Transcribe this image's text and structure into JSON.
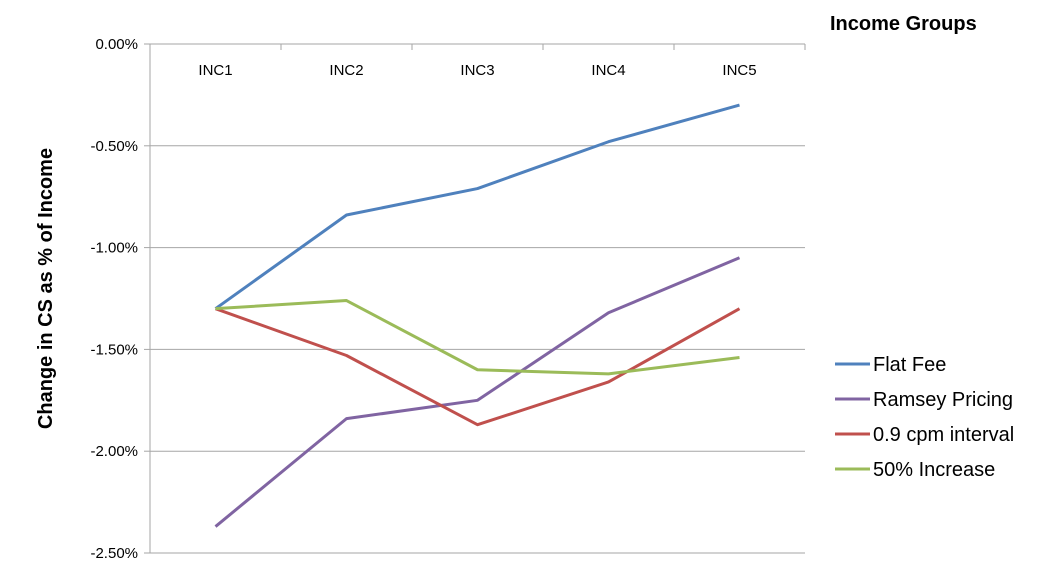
{
  "chart_data": {
    "type": "line",
    "title": "",
    "xlabel": "Income Groups",
    "ylabel": "Change in CS as % of Income",
    "categories": [
      "INC1",
      "INC2",
      "INC3",
      "INC4",
      "INC5"
    ],
    "ylim": [
      -2.5,
      0
    ],
    "yticks": [
      0,
      -0.5,
      -1,
      -1.5,
      -2,
      -2.5
    ],
    "ytick_labels": [
      "0.00%",
      "-0.50%",
      "-1.00%",
      "-1.50%",
      "-2.00%",
      "-2.50%"
    ],
    "grid": true,
    "legend_position": "right",
    "series": [
      {
        "name": "Flat Fee",
        "color": "#4f81bd",
        "values": [
          -1.3,
          -0.84,
          -0.71,
          -0.48,
          -0.3
        ]
      },
      {
        "name": "Ramsey Pricing",
        "color": "#8064a2",
        "values": [
          -2.37,
          -1.84,
          -1.75,
          -1.32,
          -1.05
        ]
      },
      {
        "name": "0.9 cpm interval",
        "color": "#c0504d",
        "values": [
          -1.3,
          -1.53,
          -1.87,
          -1.66,
          -1.3
        ]
      },
      {
        "name": "50% Increase",
        "color": "#9bbb59",
        "values": [
          -1.3,
          -1.26,
          -1.6,
          -1.62,
          -1.54
        ]
      }
    ]
  }
}
